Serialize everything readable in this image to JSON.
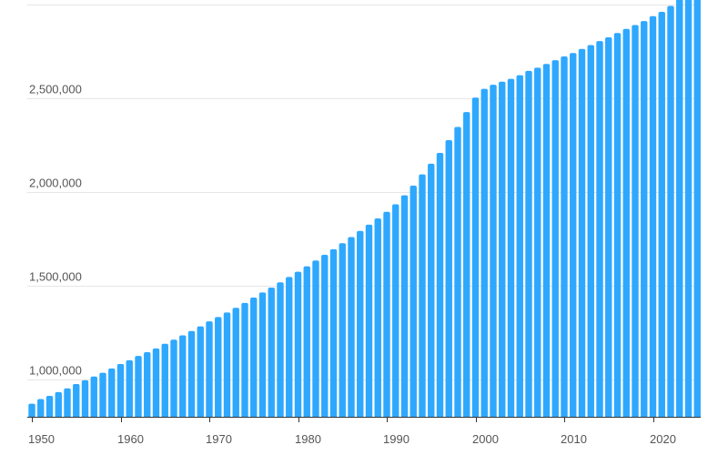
{
  "chart_data": {
    "type": "bar",
    "title": "",
    "xlabel": "",
    "ylabel": "",
    "bar_color": "#2ea8ff",
    "grid": true,
    "ylim": [
      800000,
      2900000
    ],
    "y_ticks": [
      1000000,
      1500000,
      2000000,
      2500000,
      3000000
    ],
    "y_tick_labels": [
      "1,000,000",
      "1,500,000",
      "2,000,000",
      "2,500,000",
      ""
    ],
    "x_ticks": [
      1950,
      1960,
      1970,
      1980,
      1990,
      2000,
      2010,
      2020
    ],
    "x_tick_labels": [
      "1950",
      "1960",
      "1970",
      "1980",
      "1990",
      "2000",
      "2010",
      "2020"
    ],
    "categories": [
      1950,
      1951,
      1952,
      1953,
      1954,
      1955,
      1956,
      1957,
      1958,
      1959,
      1960,
      1961,
      1962,
      1963,
      1964,
      1965,
      1966,
      1967,
      1968,
      1969,
      1970,
      1971,
      1972,
      1973,
      1974,
      1975,
      1976,
      1977,
      1978,
      1979,
      1980,
      1981,
      1982,
      1983,
      1984,
      1985,
      1986,
      1987,
      1988,
      1989,
      1990,
      1991,
      1992,
      1993,
      1994,
      1995,
      1996,
      1997,
      1998,
      1999,
      2000,
      2001,
      2002,
      2003,
      2004,
      2005,
      2006,
      2007,
      2008,
      2009,
      2010,
      2011,
      2012,
      2013,
      2014,
      2015,
      2016,
      2017,
      2018,
      2019,
      2020,
      2021,
      2022,
      2023,
      2024,
      2025
    ],
    "values": [
      870000,
      895000,
      912000,
      932000,
      952000,
      975000,
      995000,
      1015000,
      1035000,
      1058000,
      1082000,
      1102000,
      1125000,
      1145000,
      1165000,
      1190000,
      1212000,
      1235000,
      1258000,
      1283000,
      1310000,
      1333000,
      1357000,
      1382000,
      1408000,
      1437000,
      1464000,
      1490000,
      1518000,
      1547000,
      1575000,
      1604000,
      1635000,
      1665000,
      1695000,
      1727000,
      1760000,
      1793000,
      1826000,
      1860000,
      1895000,
      1935000,
      1983000,
      2035000,
      2095000,
      2152000,
      2210000,
      2278000,
      2348000,
      2428000,
      2505000,
      2552000,
      2574000,
      2590000,
      2605000,
      2625000,
      2648000,
      2665000,
      2685000,
      2705000,
      2725000,
      2743000,
      2765000,
      2786000,
      2807000,
      2827000,
      2850000,
      2872000,
      2893000,
      2914000,
      2940000,
      2963000,
      2995000,
      3035000,
      3085000,
      3150000
    ]
  }
}
